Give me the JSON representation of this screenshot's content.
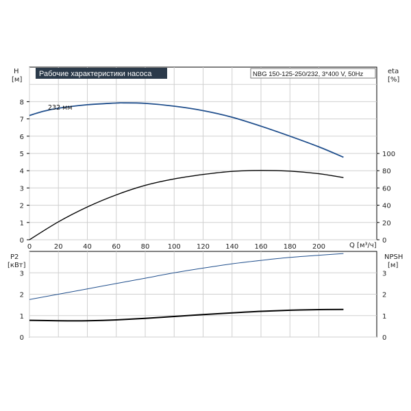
{
  "chart_data": [
    {
      "type": "line",
      "title": "Рабочие характеристики насоса",
      "subtitle": "NBG 150-125-250/232, 3*400 V, 50Hz",
      "xlabel": "Q [м³/ч]",
      "ylabel_left": "H",
      "ylabel_left_unit": "[м]",
      "ylabel_right": "eta",
      "ylabel_right_unit": "[%]",
      "x_ticks": [
        "0",
        "20",
        "40",
        "60",
        "80",
        "100",
        "120",
        "140",
        "160",
        "180",
        "200"
      ],
      "y_left_ticks": [
        "0",
        "1",
        "2",
        "3",
        "4",
        "5",
        "6",
        "7",
        "8"
      ],
      "y_right_ticks": [
        "0",
        "20",
        "40",
        "60",
        "80",
        "100"
      ],
      "xlim": [
        0,
        240
      ],
      "ylim_left": [
        0,
        10
      ],
      "ylim_right": [
        0,
        200
      ],
      "grid": true,
      "series": [
        {
          "name": "232 мм",
          "axis": "left",
          "color": "#1f4e8c",
          "x": [
            0,
            10,
            20,
            40,
            60,
            65,
            80,
            100,
            120,
            140,
            160,
            180,
            200,
            217
          ],
          "y": [
            7.2,
            7.45,
            7.62,
            7.82,
            7.92,
            7.93,
            7.9,
            7.74,
            7.48,
            7.1,
            6.58,
            6.0,
            5.38,
            4.78
          ]
        },
        {
          "name": "eta",
          "axis": "right",
          "color": "#000000",
          "x": [
            0,
            20,
            40,
            60,
            80,
            100,
            120,
            140,
            160,
            180,
            200,
            217
          ],
          "y": [
            0,
            20.8,
            38,
            52,
            63,
            70.5,
            75.6,
            79.2,
            80.3,
            79.5,
            76.5,
            72
          ]
        }
      ]
    },
    {
      "type": "line",
      "ylabel_left": "P2",
      "ylabel_left_unit": "[кВт]",
      "ylabel_right": "NPSH",
      "ylabel_right_unit": "[м]",
      "y_left_ticks": [
        "0",
        "1",
        "2",
        "3"
      ],
      "y_right_ticks": [
        "0",
        "1",
        "2",
        "3"
      ],
      "xlim": [
        0,
        240
      ],
      "ylim_left": [
        0,
        4
      ],
      "ylim_right": [
        0,
        4
      ],
      "grid": true,
      "series": [
        {
          "name": "P2",
          "axis": "left",
          "color": "#1f4e8c",
          "x": [
            0,
            20,
            40,
            60,
            80,
            100,
            120,
            140,
            160,
            180,
            200,
            217
          ],
          "y": [
            1.75,
            2.0,
            2.25,
            2.5,
            2.75,
            3.0,
            3.22,
            3.42,
            3.58,
            3.72,
            3.82,
            3.9
          ]
        },
        {
          "name": "NPSH",
          "axis": "right",
          "color": "#000000",
          "x": [
            0,
            20,
            40,
            60,
            80,
            100,
            120,
            140,
            160,
            180,
            200,
            217
          ],
          "y": [
            0.78,
            0.76,
            0.76,
            0.8,
            0.87,
            0.96,
            1.05,
            1.13,
            1.2,
            1.25,
            1.28,
            1.29
          ]
        }
      ]
    }
  ]
}
